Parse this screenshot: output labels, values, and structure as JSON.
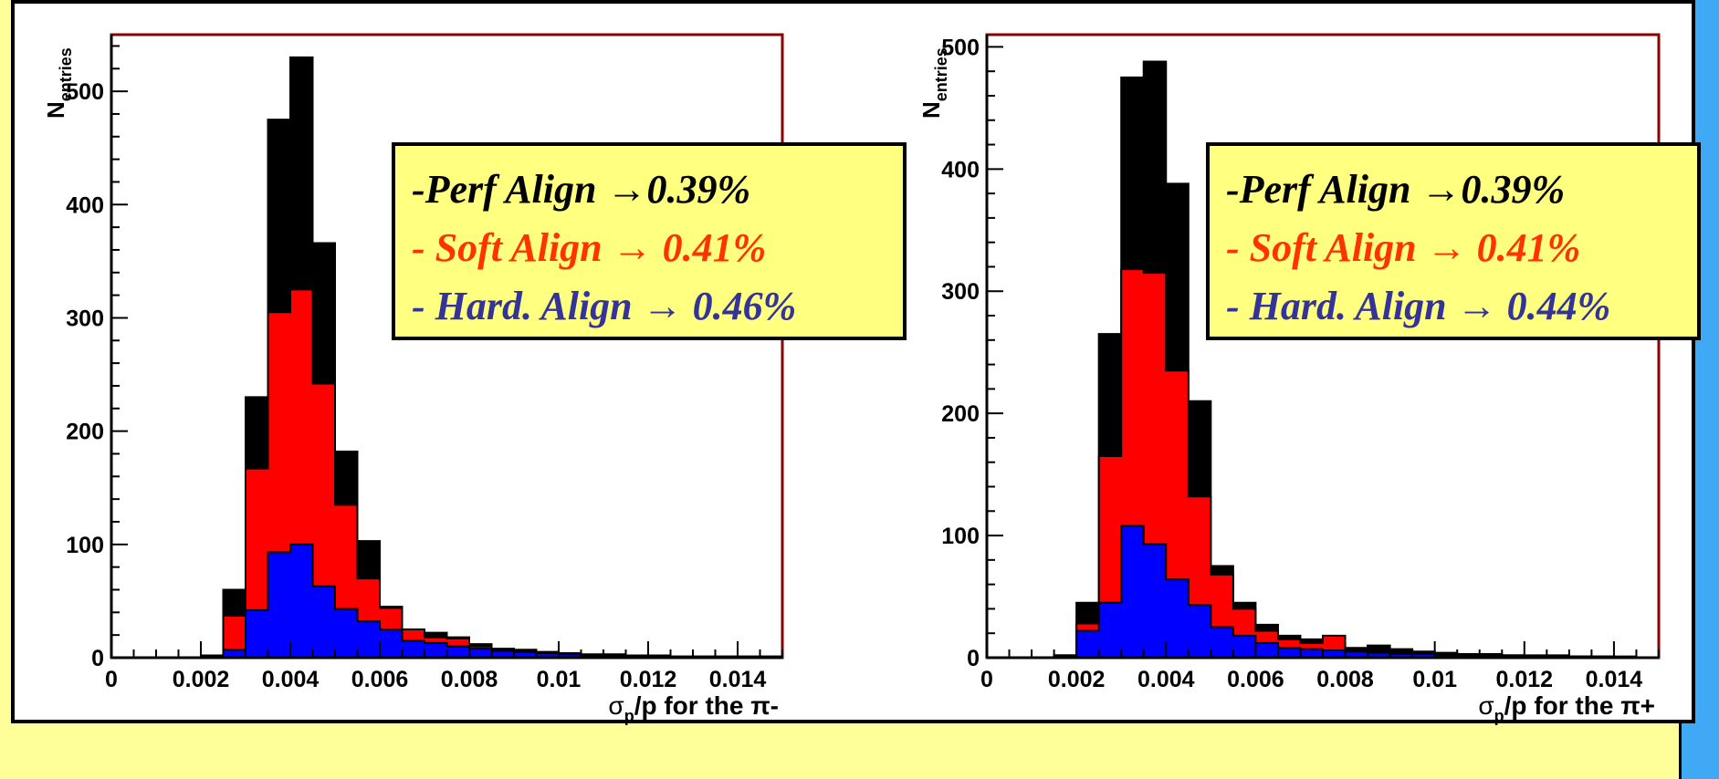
{
  "chart_data": [
    {
      "type": "area",
      "ylabel_main": "N",
      "ylabel_sub": "entries",
      "xlabel": "σ",
      "xlabel_sub": "p",
      "xlabel_rest": "/p for the π-",
      "xlim": [
        0,
        0.015
      ],
      "ylim": [
        0,
        550
      ],
      "x_ticks": [
        "0",
        "0.002",
        "0.004",
        "0.006",
        "0.008",
        "0.01",
        "0.012",
        "0.014"
      ],
      "y_ticks": [
        "0",
        "100",
        "200",
        "300",
        "400",
        "500"
      ],
      "bin_width": 0.0005,
      "x_start": 0,
      "series": [
        {
          "color": "#000000",
          "values": [
            0,
            0,
            0,
            0,
            2,
            60,
            230,
            475,
            530,
            366,
            182,
            103,
            45,
            25,
            22,
            18,
            12,
            8,
            7,
            5,
            4,
            3,
            3,
            2,
            2,
            1,
            1,
            1,
            1,
            1
          ]
        },
        {
          "color": "#ff0000",
          "values": [
            0,
            0,
            0,
            0,
            2,
            37,
            167,
            305,
            325,
            242,
            135,
            70,
            44,
            25,
            18,
            17,
            10,
            7,
            5,
            5,
            3,
            2,
            2,
            2,
            1,
            1,
            1,
            1,
            1,
            1
          ]
        },
        {
          "color": "#0000ff",
          "values": [
            0,
            0,
            0,
            0,
            1,
            7,
            42,
            93,
            100,
            63,
            43,
            32,
            25,
            15,
            13,
            10,
            8,
            6,
            5,
            4,
            3,
            2,
            2,
            2,
            1,
            1,
            1,
            1,
            1,
            1
          ]
        }
      ]
    },
    {
      "type": "area",
      "ylabel_main": "N",
      "ylabel_sub": "entries",
      "xlabel": "σ",
      "xlabel_sub": "p",
      "xlabel_rest": "/p for the π+",
      "xlim": [
        0,
        0.015
      ],
      "ylim": [
        0,
        510
      ],
      "x_ticks": [
        "0",
        "0.002",
        "0.004",
        "0.006",
        "0.008",
        "0.01",
        "0.012",
        "0.014"
      ],
      "y_ticks": [
        "0",
        "100",
        "200",
        "300",
        "400",
        "500"
      ],
      "bin_width": 0.0005,
      "x_start": 0,
      "series": [
        {
          "color": "#000000",
          "values": [
            0,
            0,
            0,
            2,
            45,
            265,
            475,
            488,
            388,
            210,
            75,
            45,
            27,
            18,
            15,
            12,
            8,
            10,
            7,
            5,
            4,
            3,
            3,
            2,
            2,
            2,
            1,
            1,
            1,
            0
          ]
        },
        {
          "color": "#ff0000",
          "values": [
            0,
            0,
            0,
            2,
            28,
            165,
            318,
            315,
            235,
            132,
            68,
            40,
            22,
            15,
            12,
            18,
            6,
            5,
            4,
            3,
            3,
            2,
            2,
            2,
            1,
            1,
            1,
            1,
            0,
            0
          ]
        },
        {
          "color": "#0000ff",
          "values": [
            0,
            0,
            0,
            1,
            22,
            45,
            108,
            93,
            64,
            43,
            25,
            18,
            12,
            8,
            7,
            6,
            5,
            4,
            3,
            3,
            2,
            2,
            2,
            1,
            1,
            1,
            1,
            0,
            0,
            0
          ]
        }
      ]
    }
  ],
  "legends": [
    {
      "perf": "-Perf Align  →0.39%",
      "soft": "- Soft Align → 0.41%",
      "hard": "- Hard. Align → 0.46%"
    },
    {
      "perf": "-Perf Align  →0.39%",
      "soft": "- Soft Align → 0.41%",
      "hard": "- Hard. Align → 0.44%"
    }
  ],
  "colors": {
    "perf": "#000000",
    "soft": "#ff3300",
    "hard": "#333399",
    "background": "#3fa9f5",
    "slide": "#ffff99",
    "legend_bg": "#ffff80"
  }
}
